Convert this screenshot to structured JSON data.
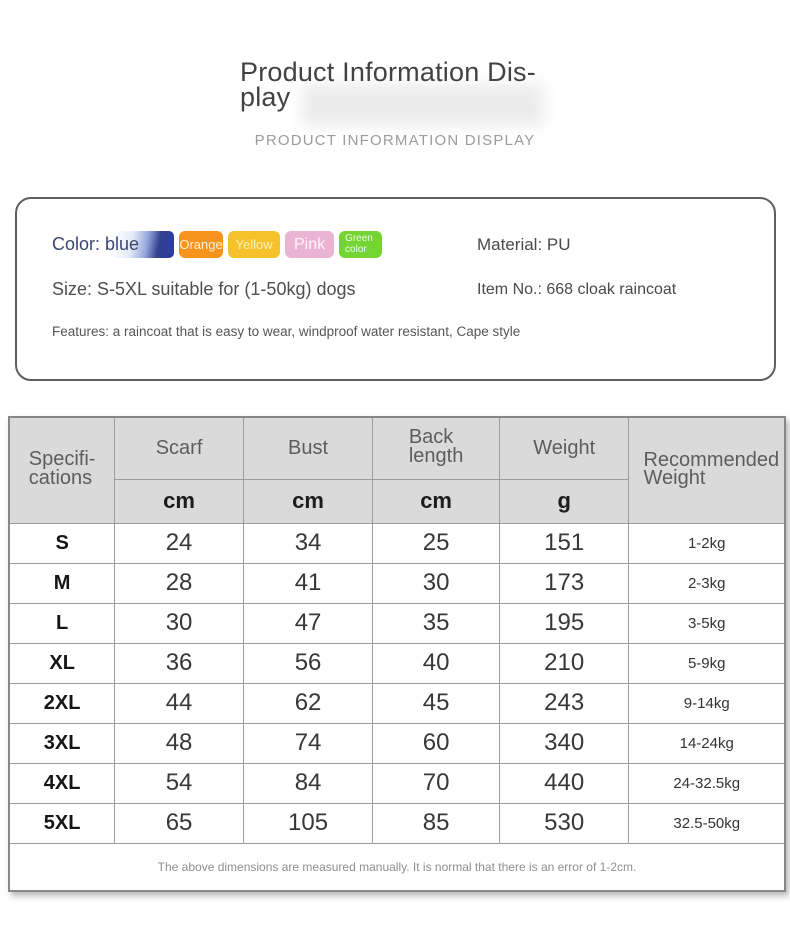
{
  "header": {
    "title_line1": "Product Information Dis-",
    "title_line2": "play",
    "subtitle": "PRODUCT INFORMATION DISPLAY"
  },
  "info": {
    "color_label": "Color: blue",
    "swatches": [
      {
        "name": "blue-gradient-swatch",
        "label": "",
        "color": "#2b3da0"
      },
      {
        "name": "orange-swatch",
        "label": "Orange",
        "color": "#f7941e"
      },
      {
        "name": "yellow-swatch",
        "label": "Yellow",
        "color": "#f5c22b"
      },
      {
        "name": "pink-swatch",
        "label": "Pink",
        "color": "#ecb4d3"
      },
      {
        "name": "green-swatch",
        "label": "Green color",
        "color": "#74d431"
      }
    ],
    "material": "Material: PU",
    "size": "Size: S-5XL suitable for (1-50kg) dogs",
    "item_no": "Item No.: 668 cloak raincoat",
    "features": "Features: a raincoat that is easy to wear, windproof water resistant, Cape style"
  },
  "table": {
    "spec_header": "Specifi-\ncations",
    "columns": [
      {
        "label": "Scarf",
        "unit": "cm"
      },
      {
        "label": "Bust",
        "unit": "cm"
      },
      {
        "label": "Back\nlength",
        "unit": "cm"
      },
      {
        "label": "Weight",
        "unit": "g"
      }
    ],
    "rec_header": "Recommended\nWeight",
    "rows": [
      {
        "size": "S",
        "scarf": "24",
        "bust": "34",
        "back": "25",
        "weight": "151",
        "recommended": "1-2kg"
      },
      {
        "size": "M",
        "scarf": "28",
        "bust": "41",
        "back": "30",
        "weight": "173",
        "recommended": "2-3kg"
      },
      {
        "size": "L",
        "scarf": "30",
        "bust": "47",
        "back": "35",
        "weight": "195",
        "recommended": "3-5kg"
      },
      {
        "size": "XL",
        "scarf": "36",
        "bust": "56",
        "back": "40",
        "weight": "210",
        "recommended": "5-9kg"
      },
      {
        "size": "2XL",
        "scarf": "44",
        "bust": "62",
        "back": "45",
        "weight": "243",
        "recommended": "9-14kg"
      },
      {
        "size": "3XL",
        "scarf": "48",
        "bust": "74",
        "back": "60",
        "weight": "340",
        "recommended": "14-24kg"
      },
      {
        "size": "4XL",
        "scarf": "54",
        "bust": "84",
        "back": "70",
        "weight": "440",
        "recommended": "24-32.5kg"
      },
      {
        "size": "5XL",
        "scarf": "65",
        "bust": "105",
        "back": "85",
        "weight": "530",
        "recommended": "32.5-50kg"
      }
    ],
    "footnote": "The above dimensions are measured manually. It is normal that there is an error of 1-2cm."
  }
}
